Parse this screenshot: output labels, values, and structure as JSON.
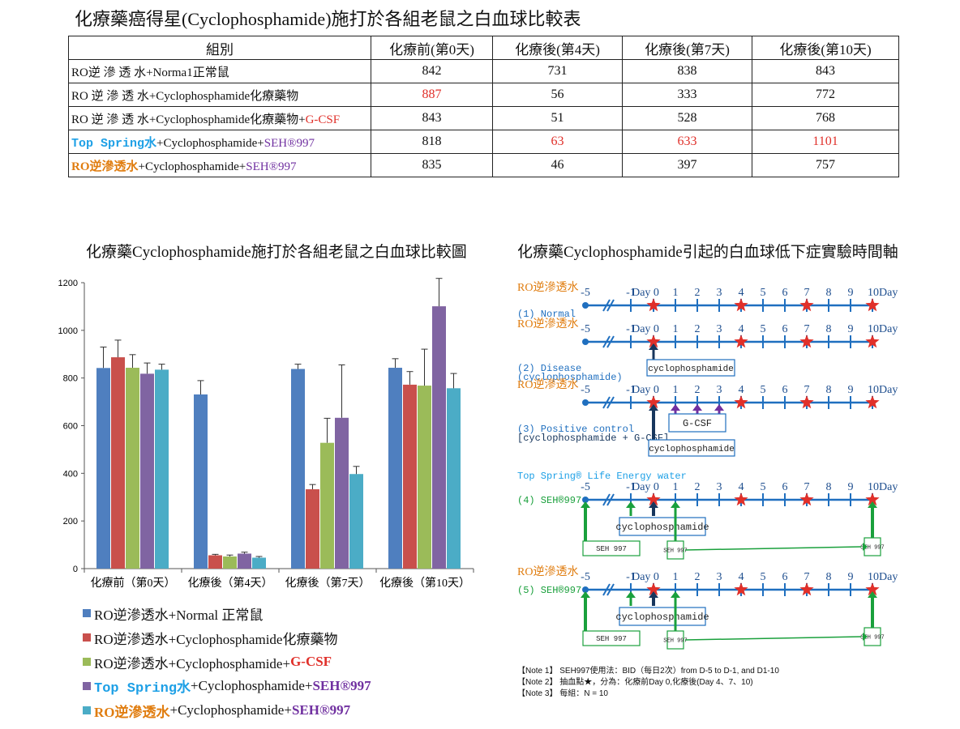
{
  "title": "化療藥癌得星(Cyclophosphamide)施打於各組老鼠之白血球比較表",
  "table": {
    "headers": [
      "組別",
      "化療前(第0天)",
      "化療後(第4天)",
      "化療後(第7天)",
      "化療後(第10天)"
    ],
    "rows": [
      {
        "label_parts": [
          "RO逆 滲 透 水+Norma1正常鼠"
        ],
        "values": [
          "842",
          "731",
          "838",
          "843"
        ]
      },
      {
        "label_parts": [
          "RO 逆 滲 透 水+Cyclophosphamide化療藥物"
        ],
        "values": [
          "887",
          "56",
          "333",
          "772"
        ]
      },
      {
        "label_parts": [
          "RO 逆 滲 透 水+Cyclophosphamide化療藥物+",
          "G-CSF"
        ],
        "values": [
          "843",
          "51",
          "528",
          "768"
        ]
      },
      {
        "label_parts": [
          "Top Spring水",
          "+Cyclophosphamide+",
          "SEH®997"
        ],
        "values": [
          "818",
          "63",
          "633",
          "1101"
        ]
      },
      {
        "label_parts": [
          "RO逆滲透水",
          "+Cyclophosphamide+",
          "SEH®997"
        ],
        "values": [
          "835",
          "46",
          "397",
          "757"
        ]
      }
    ],
    "highlight_color": "#e0302a"
  },
  "chart_title": "化療藥Cyclophosphamide施打於各組老鼠之白血球比較圖",
  "timeline_title": "化療藥Cyclophosphamide引起的白血球低下症實驗時間軸",
  "chart_data": {
    "type": "bar",
    "title": "化療藥Cyclophosphamide施打於各組老鼠之白血球比較圖",
    "categories": [
      "化療前（第0天）",
      "化療後（第4天）",
      "化療後（第7天）",
      "化療後（第10天）"
    ],
    "ylim": [
      0,
      1200
    ],
    "yticks": [
      "0",
      "200",
      "400",
      "600",
      "800",
      "1000",
      "1200"
    ],
    "grid": false,
    "legend_position": "bottom",
    "series": [
      {
        "name": "RO逆滲透水+Normal 正常鼠",
        "color": "#4f7fbf",
        "values": [
          842,
          731,
          838,
          843
        ],
        "errors": [
          88,
          58,
          20,
          38
        ]
      },
      {
        "name": "RO逆滲透水+Cyclophosphamide化療藥物",
        "color": "#c9504c",
        "values": [
          887,
          56,
          333,
          772
        ],
        "errors": [
          72,
          4,
          20,
          55
        ]
      },
      {
        "name": "RO逆滲透水+Cyclophosphamide+G-CSF",
        "color": "#9bbb59",
        "values": [
          843,
          51,
          528,
          768
        ],
        "errors": [
          55,
          6,
          103,
          153
        ]
      },
      {
        "name": "Top Spring水+Cyclophosphamide+SEH®997",
        "color": "#8064a2",
        "values": [
          818,
          63,
          633,
          1101
        ],
        "errors": [
          45,
          6,
          222,
          117
        ]
      },
      {
        "name": "RO逆滲透水+Cyclophosphamide+SEH®997",
        "color": "#4bacc6",
        "values": [
          835,
          46,
          397,
          757
        ],
        "errors": [
          23,
          5,
          32,
          62
        ]
      }
    ]
  },
  "legend": [
    {
      "parts": [
        "RO逆滲透水+Normal 正常鼠"
      ]
    },
    {
      "parts": [
        "RO逆滲透水+Cyclophosphamide化療藥物"
      ]
    },
    {
      "parts": [
        "RO逆滲透水+Cyclophosphamide+",
        "G-CSF"
      ]
    },
    {
      "parts": [
        "Top Spring水",
        "+Cyclophosphamide+",
        "SEH®997"
      ]
    },
    {
      "parts": [
        "RO逆滲透水",
        "+Cyclophosphamide+",
        "SEH®997"
      ]
    }
  ],
  "timeline": {
    "ticks": [
      "-5",
      "-1",
      "Day 0",
      "1",
      "2",
      "3",
      "4",
      "5",
      "6",
      "7",
      "8",
      "9",
      "10Day"
    ],
    "groups": [
      {
        "water": "RO逆滲透水",
        "label": "(1) Normal",
        "label2": ""
      },
      {
        "water": "RO逆滲透水",
        "label": "(2) Disease",
        "label2": "(cyclophosphamide)"
      },
      {
        "water": "RO逆滲透水",
        "label": "(3) Positive control",
        "label2": "[cyclophosphamide + G-CSF]"
      },
      {
        "water": "Top Spring® Life Energy water",
        "label": "(4)  SEH®997",
        "label2": ""
      },
      {
        "water": "RO逆滲透水",
        "label": "(5)  SEH®997",
        "label2": ""
      }
    ],
    "box_cyclo": "cyclophosphamide",
    "box_gcsf": "G-CSF",
    "box_seh": "SEH 997",
    "box_seh_small": "SEH 997"
  },
  "notes": [
    "【Note 1】 SEH997使用法：BID（每日2次）from D-5 to D-1, and D1-10",
    "【Note 2】 抽血點★，分為：化療前Day 0,化療後(Day 4、7、10)",
    "【Note 3】 每組：N = 10"
  ]
}
